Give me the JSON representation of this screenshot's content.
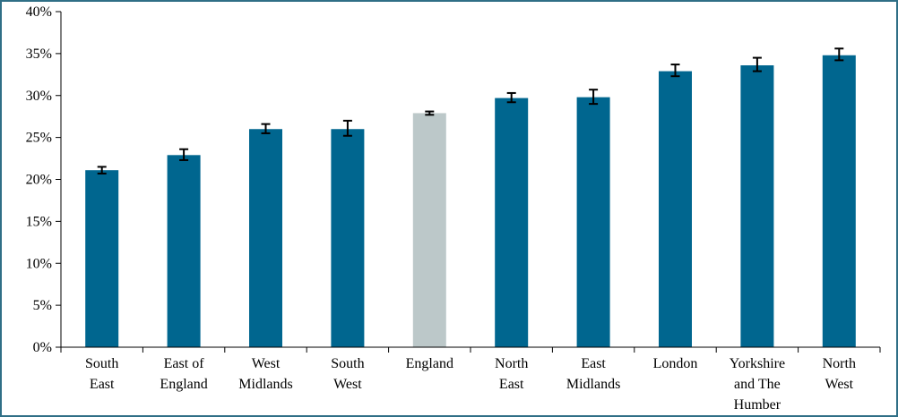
{
  "chart_data": {
    "type": "bar",
    "title": "",
    "xlabel": "",
    "ylabel": "",
    "ylim": [
      0,
      40
    ],
    "y_ticks": [
      {
        "value": 0,
        "label": "0%"
      },
      {
        "value": 5,
        "label": "5%"
      },
      {
        "value": 10,
        "label": "10%"
      },
      {
        "value": 15,
        "label": "15%"
      },
      {
        "value": 20,
        "label": "20%"
      },
      {
        "value": 25,
        "label": "25%"
      },
      {
        "value": 30,
        "label": "30%"
      },
      {
        "value": 35,
        "label": "35%"
      },
      {
        "value": 40,
        "label": "40%"
      }
    ],
    "grid": false,
    "legend": "none",
    "colors": {
      "region": "#00668f",
      "england": "#bcc8c9"
    },
    "categories": [
      [
        "South",
        "East"
      ],
      [
        "East of",
        "England"
      ],
      [
        "West",
        "Midlands"
      ],
      [
        "South",
        "West"
      ],
      [
        "England"
      ],
      [
        "North",
        "East"
      ],
      [
        "East",
        "Midlands"
      ],
      [
        "London"
      ],
      [
        "Yorkshire",
        "and The",
        "Humber"
      ],
      [
        "North",
        "West"
      ]
    ],
    "values": [
      21.1,
      22.9,
      26.0,
      26.0,
      27.9,
      29.7,
      29.8,
      32.9,
      33.6,
      34.8
    ],
    "error_low": [
      20.7,
      22.3,
      25.5,
      25.2,
      27.7,
      29.2,
      29.0,
      32.3,
      32.9,
      34.2
    ],
    "error_high": [
      21.5,
      23.6,
      26.6,
      27.0,
      28.1,
      30.3,
      30.7,
      33.7,
      34.5,
      35.6
    ],
    "highlight_index": 4
  }
}
